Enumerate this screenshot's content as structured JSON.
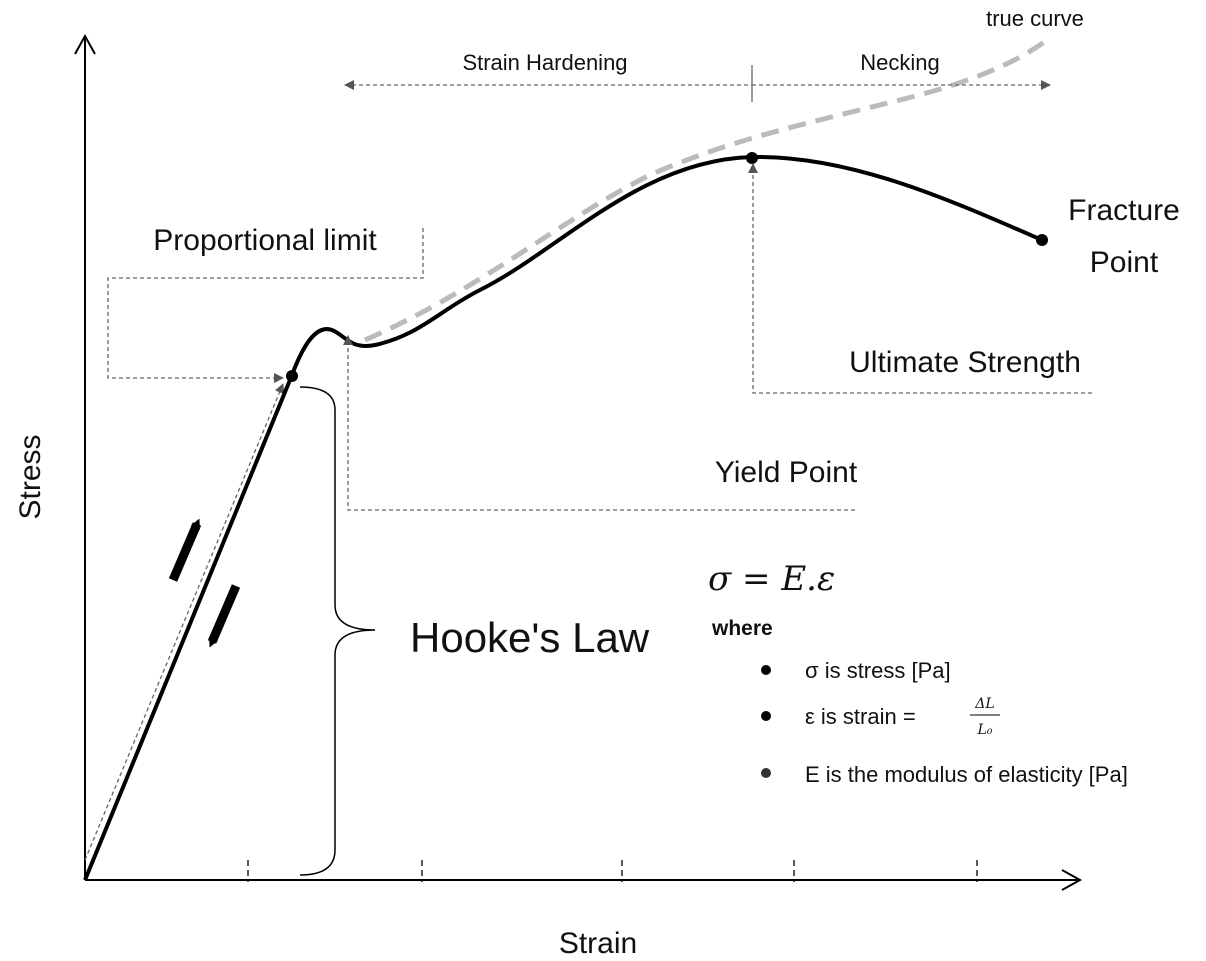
{
  "axes": {
    "x_label": "Strain",
    "y_label": "Stress"
  },
  "regions": {
    "strain_hardening": "Strain Hardening",
    "necking": "Necking"
  },
  "labels": {
    "true_curve": "true curve",
    "proportional_limit": "Proportional limit",
    "yield_point": "Yield Point",
    "ultimate_strength": "Ultimate Strength",
    "fracture_point": [
      "Fracture",
      "Point"
    ],
    "hookes_law": "Hooke's Law"
  },
  "formula": {
    "equation": "σ = E.ε",
    "where": "where",
    "items": [
      {
        "text": "σ is stress [Pa]"
      },
      {
        "text": "ε is strain =",
        "numerator": "ΔL",
        "denominator": "L₀"
      },
      {
        "text": "E is the modulus of elasticity [Pa]"
      }
    ]
  }
}
